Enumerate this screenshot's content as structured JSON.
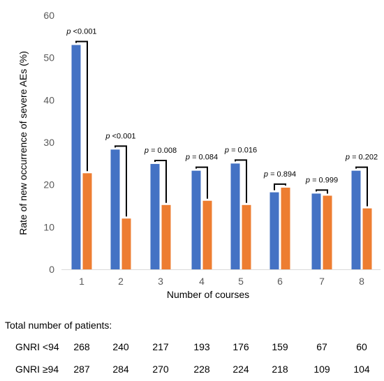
{
  "chart_data": {
    "type": "bar",
    "categories": [
      "1",
      "2",
      "3",
      "4",
      "5",
      "6",
      "7",
      "8"
    ],
    "series": [
      {
        "name": "GNRI <94",
        "color": "#4472C4",
        "values": [
          53.0,
          28.3,
          24.9,
          23.3,
          25.0,
          18.2,
          17.9,
          23.3
        ]
      },
      {
        "name": "GNRI ≥94",
        "color": "#ED7D31",
        "values": [
          22.7,
          12.0,
          15.2,
          16.2,
          15.2,
          19.3,
          17.4,
          14.4
        ]
      }
    ],
    "p_values": [
      "<0.001",
      "<0.001",
      "= 0.008",
      "= 0.084",
      "= 0.016",
      "= 0.894",
      "= 0.999",
      "= 0.202"
    ],
    "p_symbol": "p",
    "xlabel": "Number of courses",
    "ylabel": "Rate of new occurrence of severe AEs (%)",
    "ylim": [
      0,
      60
    ],
    "yticks": [
      0,
      10,
      20,
      30,
      40,
      50,
      60
    ],
    "grid": false,
    "legend": "none"
  },
  "table": {
    "title": "Total number of patients:",
    "rows": [
      {
        "label": "GNRI <94",
        "values": [
          "268",
          "240",
          "217",
          "193",
          "176",
          "159",
          "67",
          "60"
        ]
      },
      {
        "label": "GNRI ≥94",
        "values": [
          "287",
          "284",
          "270",
          "228",
          "224",
          "218",
          "109",
          "104"
        ]
      }
    ]
  }
}
